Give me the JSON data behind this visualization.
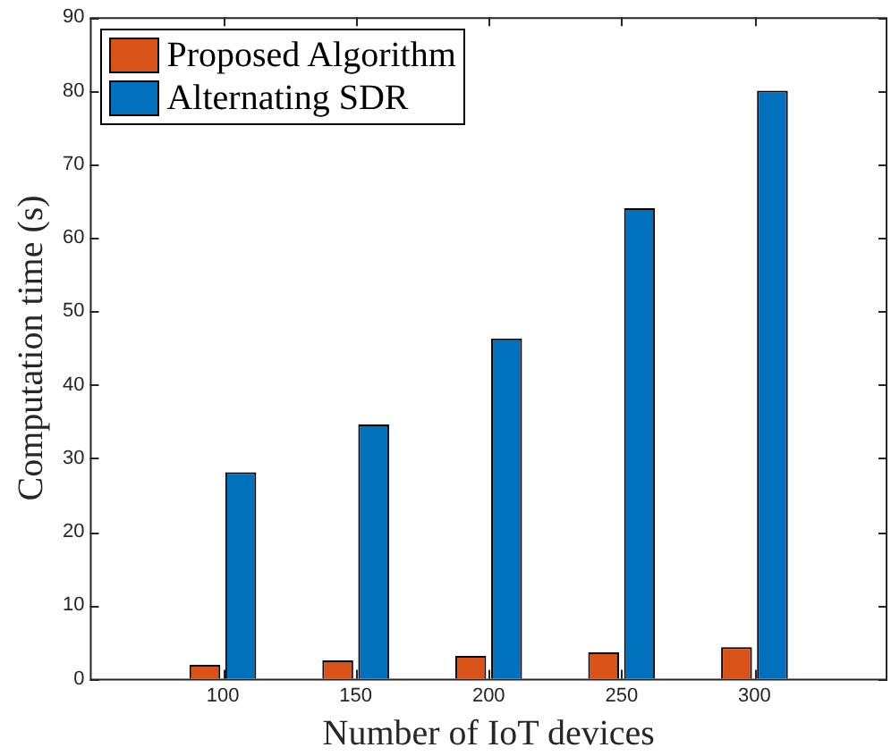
{
  "chart_data": {
    "type": "bar",
    "xlabel": "Number of IoT devices",
    "ylabel": "Computation time (s)",
    "x": [
      100,
      150,
      200,
      250,
      300
    ],
    "xlim": [
      50,
      350
    ],
    "xticks": [
      100,
      150,
      200,
      250,
      300
    ],
    "ylim": [
      0,
      90
    ],
    "yticks": [
      0,
      10,
      20,
      30,
      40,
      50,
      60,
      70,
      80,
      90
    ],
    "series": [
      {
        "name": "Proposed Algorithm",
        "color": "#d95319",
        "values": [
          1.9,
          2.5,
          3.1,
          3.6,
          4.3
        ]
      },
      {
        "name": "Alternating SDR",
        "color": "#0072bd",
        "values": [
          28.1,
          34.6,
          46.3,
          64.0,
          80.0
        ]
      }
    ],
    "grid": false,
    "legend": "top left"
  }
}
